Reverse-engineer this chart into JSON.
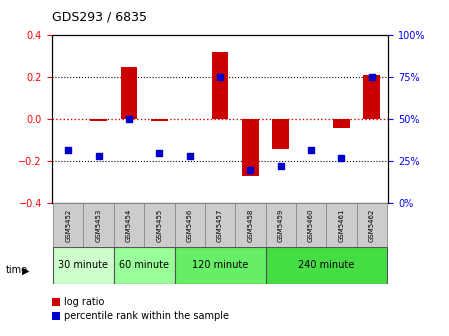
{
  "title": "GDS293 / 6835",
  "samples": [
    "GSM5452",
    "GSM5453",
    "GSM5454",
    "GSM5455",
    "GSM5456",
    "GSM5457",
    "GSM5458",
    "GSM5459",
    "GSM5460",
    "GSM5461",
    "GSM5462"
  ],
  "log_ratio": [
    0.0,
    -0.01,
    0.25,
    -0.01,
    0.0,
    0.32,
    -0.27,
    -0.14,
    0.0,
    -0.04,
    0.21
  ],
  "percentile": [
    32,
    28,
    50,
    30,
    28,
    75,
    20,
    22,
    32,
    27,
    75
  ],
  "ylim_left": [
    -0.4,
    0.4
  ],
  "ylim_right": [
    0,
    100
  ],
  "y_ticks_left": [
    -0.4,
    -0.2,
    0.0,
    0.2,
    0.4
  ],
  "y_ticks_right": [
    0,
    25,
    50,
    75,
    100
  ],
  "bar_color": "#cc0000",
  "dot_color": "#0000cc",
  "zero_line_color": "#cc0000",
  "background_color": "#ffffff",
  "sample_box_color": "#cccccc",
  "groups": [
    {
      "label": "30 minute",
      "start": 0,
      "end": 1,
      "color": "#ccffcc"
    },
    {
      "label": "60 minute",
      "start": 2,
      "end": 3,
      "color": "#99ff99"
    },
    {
      "label": "120 minute",
      "start": 4,
      "end": 6,
      "color": "#66ee66"
    },
    {
      "label": "240 minute",
      "start": 7,
      "end": 10,
      "color": "#44dd44"
    }
  ]
}
